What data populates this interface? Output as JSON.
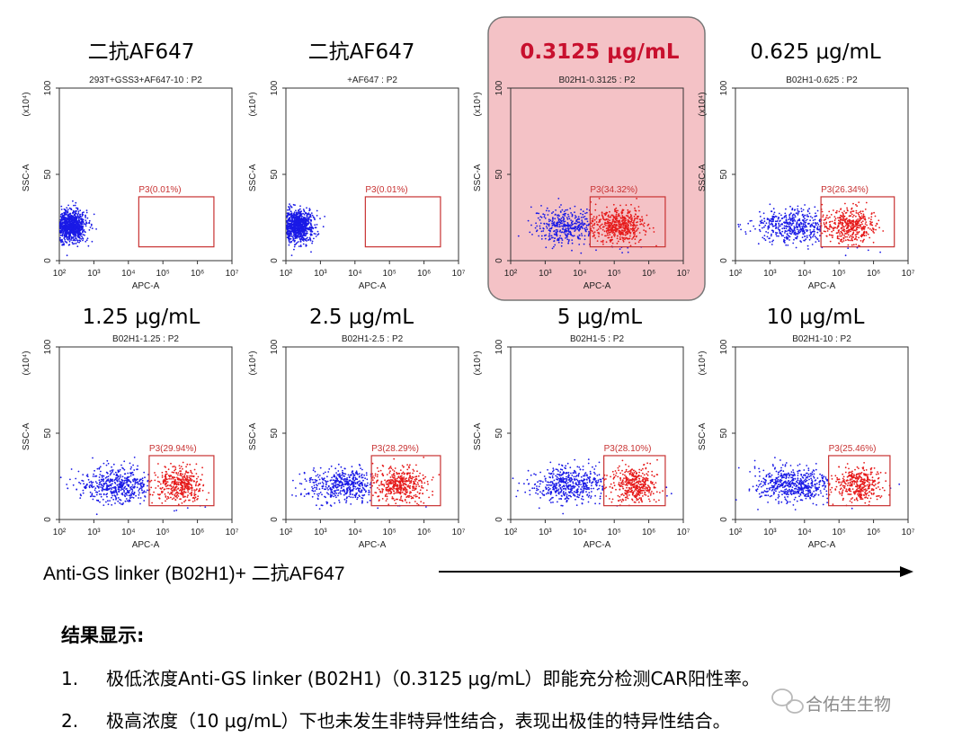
{
  "colors": {
    "negative": "#1a1ae6",
    "positive": "#e61a1a",
    "gate": "#c83232",
    "highlight_fill": "#f4c2c6",
    "highlight_border": "#777777",
    "highlight_title": "#c8102e"
  },
  "chart_data": [
    {
      "type": "scatter",
      "title": "二抗AF647",
      "subtitle": "293T+GSS3+AF647-10 : P2",
      "xlabel": "APC-A",
      "ylabel": "SSC-A",
      "y_multiplier_label": "(x10⁴)",
      "x_scale": "log",
      "x_ticks": [
        "10²",
        "10³",
        "10⁴",
        "10⁵",
        "10⁶",
        "10⁷"
      ],
      "xlim": [
        100,
        10000000
      ],
      "y_ticks": [
        "0",
        "50",
        "100"
      ],
      "ylim": [
        0,
        100
      ],
      "gate": {
        "name": "P3",
        "label": "P3(0.01%)",
        "percent": 0.01,
        "x_range": [
          20000,
          3000000
        ],
        "y_range": [
          8,
          37
        ]
      },
      "highlighted": false
    },
    {
      "type": "scatter",
      "title": "二抗AF647",
      "subtitle": "+AF647 : P2",
      "xlabel": "APC-A",
      "ylabel": "SSC-A",
      "y_multiplier_label": "(x10⁴)",
      "x_scale": "log",
      "x_ticks": [
        "10²",
        "10³",
        "10⁴",
        "10⁵",
        "10⁶",
        "10⁷"
      ],
      "xlim": [
        100,
        10000000
      ],
      "y_ticks": [
        "0",
        "50",
        "100"
      ],
      "ylim": [
        0,
        100
      ],
      "gate": {
        "name": "P3",
        "label": "P3(0.01%)",
        "percent": 0.01,
        "x_range": [
          20000,
          3000000
        ],
        "y_range": [
          8,
          37
        ]
      },
      "highlighted": false
    },
    {
      "type": "scatter",
      "title": "0.3125 μg/mL",
      "subtitle": "B02H1-0.3125 : P2",
      "xlabel": "APC-A",
      "ylabel": "SSC-A",
      "y_multiplier_label": "(x10⁴)",
      "x_scale": "log",
      "x_ticks": [
        "10²",
        "10³",
        "10⁴",
        "10⁵",
        "10⁶",
        "10⁷"
      ],
      "xlim": [
        100,
        10000000
      ],
      "y_ticks": [
        "0",
        "50",
        "100"
      ],
      "ylim": [
        0,
        100
      ],
      "gate": {
        "name": "P3",
        "label": "P3(34.32%)",
        "percent": 34.32,
        "x_range": [
          20000,
          3000000
        ],
        "y_range": [
          8,
          37
        ]
      },
      "highlighted": true
    },
    {
      "type": "scatter",
      "title": "0.625 μg/mL",
      "subtitle": "B02H1-0.625 : P2",
      "xlabel": "APC-A",
      "ylabel": "SSC-A",
      "y_multiplier_label": "(x10⁴)",
      "x_scale": "log",
      "x_ticks": [
        "10²",
        "10³",
        "10⁴",
        "10⁵",
        "10⁶",
        "10⁷"
      ],
      "xlim": [
        100,
        10000000
      ],
      "y_ticks": [
        "0",
        "50",
        "100"
      ],
      "ylim": [
        0,
        100
      ],
      "gate": {
        "name": "P3",
        "label": "P3(26.34%)",
        "percent": 26.34,
        "x_range": [
          30000,
          4000000
        ],
        "y_range": [
          8,
          37
        ]
      },
      "highlighted": false
    },
    {
      "type": "scatter",
      "title": "1.25 μg/mL",
      "subtitle": "B02H1-1.25 : P2",
      "xlabel": "APC-A",
      "ylabel": "SSC-A",
      "y_multiplier_label": "(x10⁴)",
      "x_scale": "log",
      "x_ticks": [
        "10²",
        "10³",
        "10⁴",
        "10⁵",
        "10⁶",
        "10⁷"
      ],
      "xlim": [
        100,
        10000000
      ],
      "y_ticks": [
        "0",
        "50",
        "100"
      ],
      "ylim": [
        0,
        100
      ],
      "gate": {
        "name": "P3",
        "label": "P3(29.94%)",
        "percent": 29.94,
        "x_range": [
          40000,
          3000000
        ],
        "y_range": [
          8,
          37
        ]
      },
      "highlighted": false
    },
    {
      "type": "scatter",
      "title": "2.5 μg/mL",
      "subtitle": "B02H1-2.5 : P2",
      "xlabel": "APC-A",
      "ylabel": "SSC-A",
      "y_multiplier_label": "(x10⁴)",
      "x_scale": "log",
      "x_ticks": [
        "10²",
        "10³",
        "10⁴",
        "10⁵",
        "10⁶",
        "10⁷"
      ],
      "xlim": [
        100,
        10000000
      ],
      "y_ticks": [
        "0",
        "50",
        "100"
      ],
      "ylim": [
        0,
        100
      ],
      "gate": {
        "name": "P3",
        "label": "P3(28.29%)",
        "percent": 28.29,
        "x_range": [
          30000,
          3000000
        ],
        "y_range": [
          8,
          37
        ]
      },
      "highlighted": false
    },
    {
      "type": "scatter",
      "title": "5 μg/mL",
      "subtitle": "B02H1-5 : P2",
      "xlabel": "APC-A",
      "ylabel": "SSC-A",
      "y_multiplier_label": "(x10⁴)",
      "x_scale": "log",
      "x_ticks": [
        "10²",
        "10³",
        "10⁴",
        "10⁵",
        "10⁶",
        "10⁷"
      ],
      "xlim": [
        100,
        10000000
      ],
      "y_ticks": [
        "0",
        "50",
        "100"
      ],
      "ylim": [
        0,
        100
      ],
      "gate": {
        "name": "P3",
        "label": "P3(28.10%)",
        "percent": 28.1,
        "x_range": [
          50000,
          3000000
        ],
        "y_range": [
          8,
          37
        ]
      },
      "highlighted": false
    },
    {
      "type": "scatter",
      "title": "10 μg/mL",
      "subtitle": "B02H1-10 : P2",
      "xlabel": "APC-A",
      "ylabel": "SSC-A",
      "y_multiplier_label": "(x10⁴)",
      "x_scale": "log",
      "x_ticks": [
        "10²",
        "10³",
        "10⁴",
        "10⁵",
        "10⁶",
        "10⁷"
      ],
      "xlim": [
        100,
        10000000
      ],
      "y_ticks": [
        "0",
        "50",
        "100"
      ],
      "ylim": [
        0,
        100
      ],
      "gate": {
        "name": "P3",
        "label": "P3(25.46%)",
        "percent": 25.46,
        "x_range": [
          50000,
          3000000
        ],
        "y_range": [
          8,
          37
        ]
      },
      "highlighted": false
    }
  ],
  "caption": "Anti-GS linker (B02H1)+ 二抗AF647",
  "summary": {
    "title": "结果显示:",
    "items": [
      {
        "num": "1.",
        "text": "极低浓度Anti-GS linker (B02H1)（0.3125 μg/mL）即能充分检测CAR阳性率。"
      },
      {
        "num": "2.",
        "text": "极高浓度（10 μg/mL）下也未发生非特异性结合，表现出极佳的特异性结合。"
      }
    ]
  },
  "watermark": "合佑生生物"
}
